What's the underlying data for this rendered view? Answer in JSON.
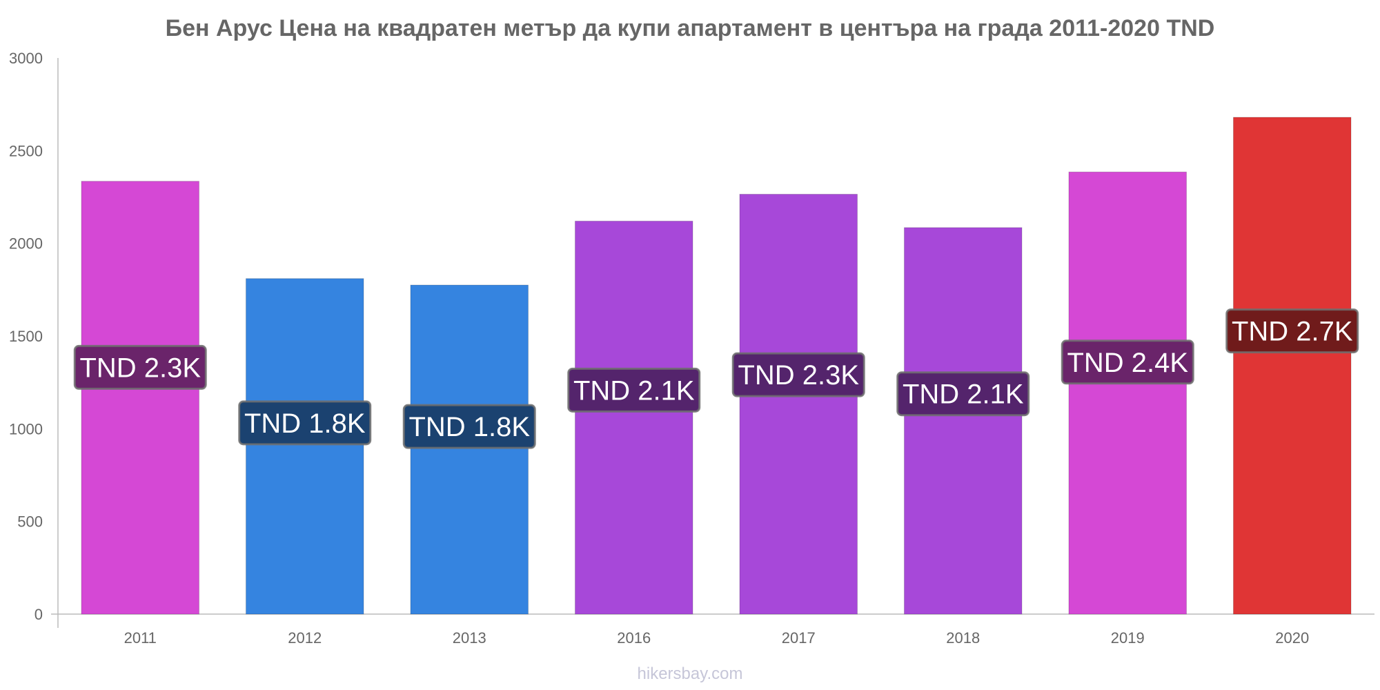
{
  "chart_data": {
    "type": "bar",
    "title": "Бен Арус Цена на квадратен метър да купи апартамент в центъра на града 2011-2020 TND",
    "categories": [
      "2011",
      "2012",
      "2013",
      "2016",
      "2017",
      "2018",
      "2019",
      "2020"
    ],
    "values": [
      2335,
      1810,
      1775,
      2120,
      2265,
      2085,
      2385,
      2680
    ],
    "data_labels": [
      "TND 2.3K",
      "TND 1.8K",
      "TND 1.8K",
      "TND 2.1K",
      "TND 2.3K",
      "TND 2.1K",
      "TND 2.4K",
      "TND 2.7K"
    ],
    "bar_colors": [
      "#d548d5",
      "#3584e0",
      "#3584e0",
      "#a748d9",
      "#a748d9",
      "#a748d9",
      "#d548d5",
      "#e03535"
    ],
    "label_box_colors": [
      "#6a246a",
      "#1b4270",
      "#1b4270",
      "#54246c",
      "#54246c",
      "#54246c",
      "#6a246a",
      "#701b1b"
    ],
    "yticks": [
      "0",
      "500",
      "1000",
      "1500",
      "2000",
      "2500",
      "3000"
    ],
    "ylim": [
      0,
      3000
    ],
    "xlabel": "",
    "ylabel": "",
    "grid": false,
    "legend": "none"
  },
  "watermark": "hikersbay.com"
}
